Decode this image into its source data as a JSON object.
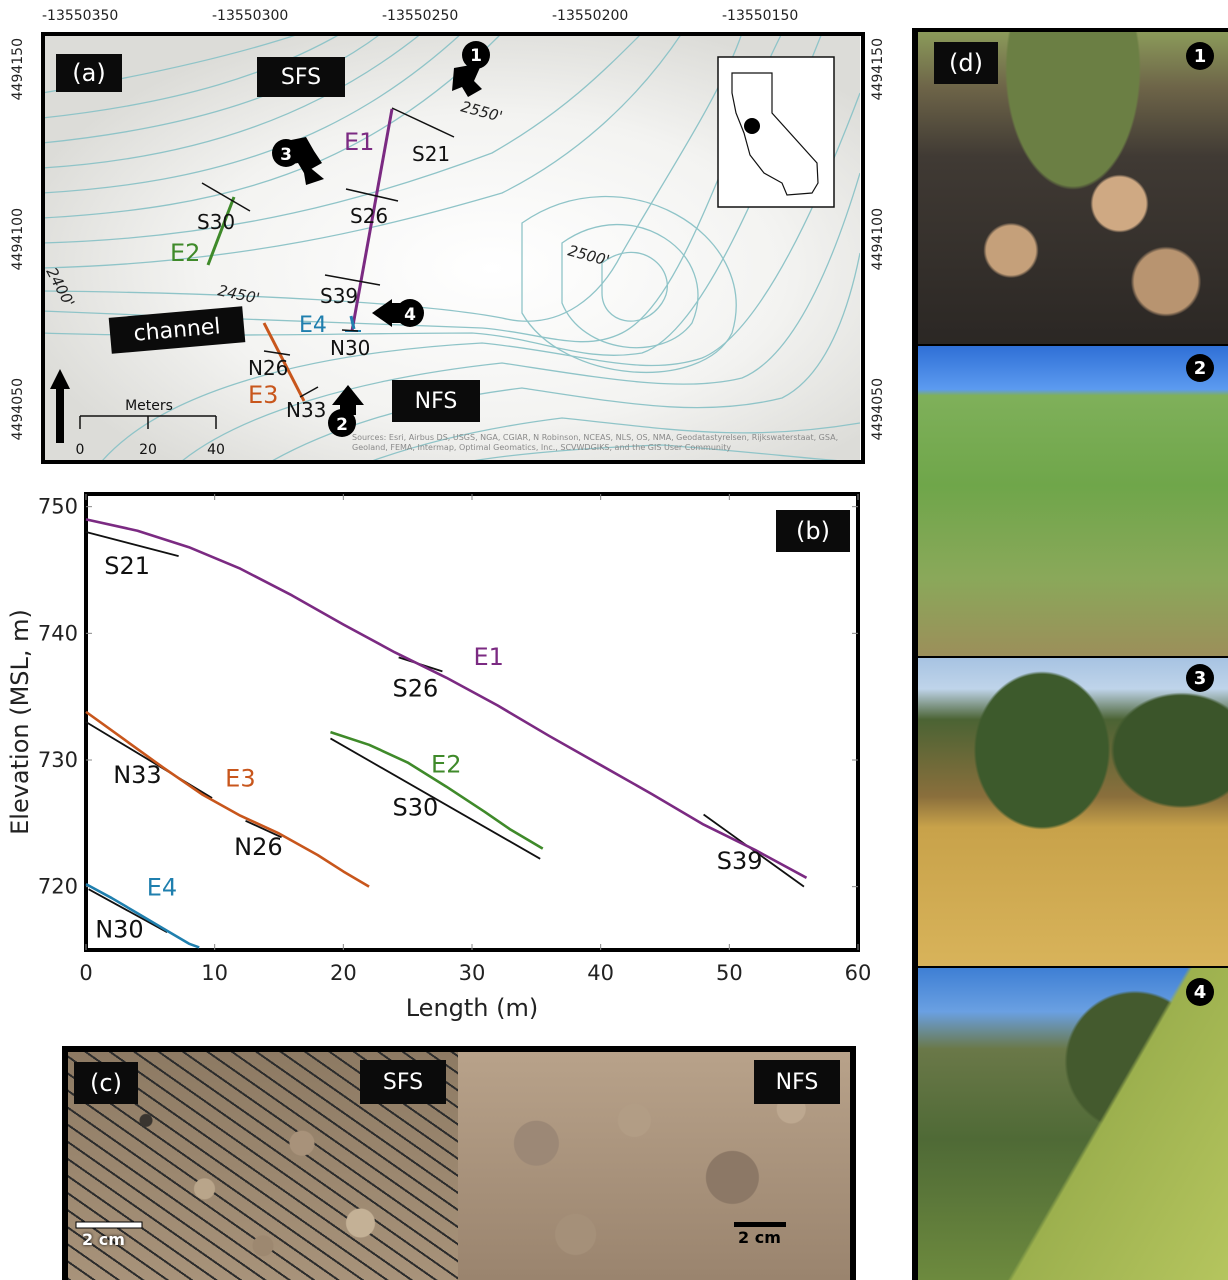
{
  "panel_a": {
    "label": "(a)",
    "top_ticks": [
      "-13550350",
      "-13550300",
      "-13550250",
      "-13550200",
      "-13550150"
    ],
    "side_ticks": [
      "4494150",
      "4494100",
      "4494050"
    ],
    "sfs": "SFS",
    "nfs": "NFS",
    "channel": "channel",
    "contours": [
      "2550'",
      "2500'",
      "2450'",
      "2400'"
    ],
    "transects": [
      "E1",
      "E2",
      "E3",
      "E4"
    ],
    "slopes": [
      "S21",
      "S26",
      "S30",
      "S39",
      "N26",
      "N30",
      "N33"
    ],
    "arrows": [
      "1",
      "2",
      "3",
      "4"
    ],
    "scale_title": "Meters",
    "scale_ticks": [
      "0",
      "20",
      "40"
    ],
    "sources": "Sources: Esri, Airbus DS, USGS, NGA, CGIAR, N Robinson, NCEAS, NLS, OS, NMA, Geodatastyrelsen, Rijkswaterstaat, GSA, Geoland, FEMA, Intermap, Optimal Geomatics, Inc., SCVWDGIKS, and the GIS User Community"
  },
  "panel_b": {
    "label": "(b)"
  },
  "panel_c": {
    "label": "(c)",
    "left_tag": "SFS",
    "right_tag": "NFS",
    "scale_left": "2 cm",
    "scale_right": "2 cm"
  },
  "panel_d": {
    "label": "(d)",
    "photo_numbers": [
      "1",
      "2",
      "3",
      "4"
    ]
  },
  "colors": {
    "E1": "#7b2a82",
    "E2": "#3f8a2a",
    "E3": "#c8561c",
    "E4": "#1f7fae",
    "contour": "#8fc4c8"
  },
  "chart_data": {
    "type": "line",
    "xlabel": "Length (m)",
    "ylabel": "Elevation (MSL, m)",
    "xlim": [
      0,
      60
    ],
    "ylim": [
      715,
      751
    ],
    "xticks": [
      0,
      10,
      20,
      30,
      40,
      50,
      60
    ],
    "yticks": [
      720,
      730,
      740,
      750
    ],
    "series": [
      {
        "name": "E1",
        "color": "#7b2a82",
        "x": [
          0,
          4,
          8,
          12,
          16,
          20,
          24,
          28,
          32,
          36,
          40,
          44,
          48,
          52,
          56
        ],
        "y": [
          749,
          748.1,
          746.8,
          745.1,
          743.0,
          740.7,
          738.5,
          736.5,
          734.3,
          731.9,
          729.6,
          727.3,
          724.9,
          722.9,
          720.7
        ]
      },
      {
        "name": "E2",
        "color": "#3f8a2a",
        "x": [
          19,
          22,
          25,
          28,
          31,
          33,
          35.5
        ],
        "y": [
          732.2,
          731.2,
          729.8,
          727.9,
          725.9,
          724.5,
          723.0
        ]
      },
      {
        "name": "E3",
        "color": "#c8561c",
        "x": [
          0,
          3,
          6,
          9,
          12,
          15,
          18,
          20,
          22
        ],
        "y": [
          733.8,
          731.6,
          729.4,
          727.3,
          725.6,
          724.2,
          722.5,
          721.2,
          720.0
        ]
      },
      {
        "name": "E4",
        "color": "#1f7fae",
        "x": [
          0,
          2,
          4,
          6,
          8,
          8.8
        ],
        "y": [
          720.2,
          719.1,
          717.9,
          716.7,
          715.5,
          715.2
        ]
      }
    ],
    "reference_lines": [
      {
        "name": "S21",
        "x": [
          0,
          7.2
        ],
        "y": [
          748.0,
          746.1
        ]
      },
      {
        "name": "S26",
        "x": [
          24.3,
          27.7
        ],
        "y": [
          738.1,
          737.0
        ]
      },
      {
        "name": "S30",
        "x": [
          19,
          35.3
        ],
        "y": [
          731.7,
          722.2
        ]
      },
      {
        "name": "S39",
        "x": [
          48,
          55.8
        ],
        "y": [
          725.7,
          720.0
        ]
      },
      {
        "name": "N33",
        "x": [
          0,
          9.8
        ],
        "y": [
          733.0,
          727.0
        ]
      },
      {
        "name": "N26",
        "x": [
          12.4,
          15.2
        ],
        "y": [
          725.2,
          723.9
        ]
      },
      {
        "name": "N30",
        "x": [
          0.2,
          6.3
        ],
        "y": [
          719.8,
          716.4
        ]
      }
    ],
    "annotations": [
      {
        "text": "S21",
        "x": 3.2,
        "y": 744.7
      },
      {
        "text": "S26",
        "x": 25.6,
        "y": 735.0
      },
      {
        "text": "E1",
        "x": 31.3,
        "y": 737.5
      },
      {
        "text": "E2",
        "x": 28.0,
        "y": 729.0
      },
      {
        "text": "S30",
        "x": 25.6,
        "y": 725.6
      },
      {
        "text": "E3",
        "x": 12.0,
        "y": 727.9
      },
      {
        "text": "N33",
        "x": 4.0,
        "y": 728.2
      },
      {
        "text": "N26",
        "x": 13.4,
        "y": 722.5
      },
      {
        "text": "S39",
        "x": 50.8,
        "y": 721.4
      },
      {
        "text": "E4",
        "x": 5.9,
        "y": 719.3
      },
      {
        "text": "N30",
        "x": 2.6,
        "y": 716.0
      }
    ]
  }
}
